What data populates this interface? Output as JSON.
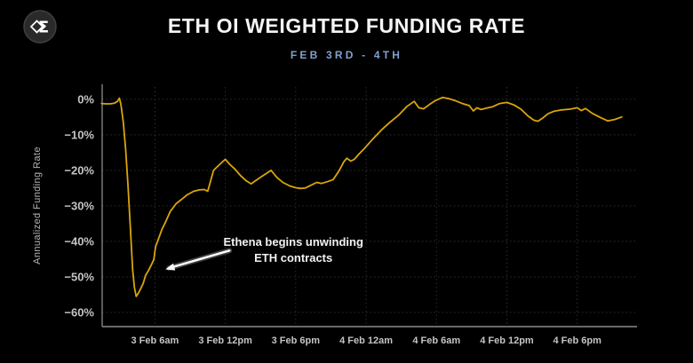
{
  "logo": {
    "glyph": "sigma-diamond-icon",
    "circle_color": "#2a2a2a",
    "ring_color": "#404040",
    "glyph_color": "#ffffff",
    "sigma": "Σ"
  },
  "header": {
    "title": "ETH OI WEIGHTED FUNDING RATE",
    "subtitle": "FEB 3RD - 4TH",
    "title_color": "#f5f5f5",
    "subtitle_color": "#83a0cd"
  },
  "chart_data": {
    "type": "line",
    "title": "ETH OI WEIGHTED FUNDING RATE",
    "subtitle": "FEB 3RD - 4TH",
    "xlabel": "",
    "ylabel": "Annualized Funding Rate",
    "background": "#000000",
    "line_color": "#d9a60a",
    "grid": true,
    "grid_color": "#2e2e2e",
    "spine_color": "#8c8c8c",
    "tick_label_color": "#c4c4c4",
    "xlim_hours_from_feb3_midnight": [
      1.5,
      47.1
    ],
    "ylim_percent": [
      -64,
      4.2
    ],
    "yticks": [
      {
        "value": 0,
        "label": "0%"
      },
      {
        "value": -10,
        "label": "−10%"
      },
      {
        "value": -20,
        "label": "−20%"
      },
      {
        "value": -30,
        "label": "−30%"
      },
      {
        "value": -40,
        "label": "−40%"
      },
      {
        "value": -50,
        "label": "−50%"
      },
      {
        "value": -60,
        "label": "−60%"
      }
    ],
    "xticks": [
      {
        "hour": 6,
        "label": "3 Feb 6am"
      },
      {
        "hour": 12,
        "label": "3 Feb 12pm"
      },
      {
        "hour": 18,
        "label": "3 Feb 6pm"
      },
      {
        "hour": 24,
        "label": "4 Feb 12am"
      },
      {
        "hour": 30,
        "label": "4 Feb 6am"
      },
      {
        "hour": 36,
        "label": "4 Feb 12pm"
      },
      {
        "hour": 42,
        "label": "4 Feb 6pm"
      }
    ],
    "series": [
      {
        "name": "ETH OI weighted funding rate (annualized %)",
        "points": [
          [
            1.45,
            -1.2
          ],
          [
            1.8,
            -1.3
          ],
          [
            2.2,
            -1.3
          ],
          [
            2.55,
            -1.1
          ],
          [
            2.8,
            -0.6
          ],
          [
            2.97,
            0.3
          ],
          [
            3.1,
            -1.5
          ],
          [
            3.3,
            -6.5
          ],
          [
            3.5,
            -14
          ],
          [
            3.7,
            -24
          ],
          [
            3.9,
            -36
          ],
          [
            4.1,
            -48
          ],
          [
            4.25,
            -53
          ],
          [
            4.4,
            -55.5
          ],
          [
            4.6,
            -54.5
          ],
          [
            4.8,
            -53.2
          ],
          [
            5.0,
            -51.8
          ],
          [
            5.2,
            -49.6
          ],
          [
            5.45,
            -48.2
          ],
          [
            5.7,
            -46.6
          ],
          [
            5.9,
            -45.2
          ],
          [
            6.05,
            -41.5
          ],
          [
            6.3,
            -39.3
          ],
          [
            6.6,
            -36.6
          ],
          [
            6.9,
            -34.6
          ],
          [
            7.3,
            -31.6
          ],
          [
            7.8,
            -29.4
          ],
          [
            8.3,
            -28.1
          ],
          [
            8.7,
            -27.0
          ],
          [
            9.3,
            -25.9
          ],
          [
            9.8,
            -25.5
          ],
          [
            10.2,
            -25.4
          ],
          [
            10.5,
            -25.9
          ],
          [
            11.0,
            -20.0
          ],
          [
            11.5,
            -18.4
          ],
          [
            12.0,
            -16.9
          ],
          [
            12.4,
            -18.4
          ],
          [
            12.8,
            -19.6
          ],
          [
            13.3,
            -21.5
          ],
          [
            13.8,
            -23.0
          ],
          [
            14.2,
            -23.8
          ],
          [
            14.8,
            -22.4
          ],
          [
            15.4,
            -21.1
          ],
          [
            15.9,
            -20.0
          ],
          [
            16.4,
            -22.0
          ],
          [
            16.9,
            -23.4
          ],
          [
            17.5,
            -24.4
          ],
          [
            18.0,
            -24.9
          ],
          [
            18.4,
            -25.1
          ],
          [
            18.8,
            -25.0
          ],
          [
            19.3,
            -24.2
          ],
          [
            19.8,
            -23.4
          ],
          [
            20.2,
            -23.7
          ],
          [
            20.7,
            -23.2
          ],
          [
            21.2,
            -22.6
          ],
          [
            21.7,
            -20.1
          ],
          [
            22.1,
            -17.6
          ],
          [
            22.35,
            -16.6
          ],
          [
            22.7,
            -17.4
          ],
          [
            23.0,
            -16.9
          ],
          [
            23.4,
            -15.4
          ],
          [
            23.9,
            -13.7
          ],
          [
            24.6,
            -11.1
          ],
          [
            25.3,
            -8.7
          ],
          [
            26.0,
            -6.6
          ],
          [
            26.8,
            -4.4
          ],
          [
            27.5,
            -2.0
          ],
          [
            28.1,
            -0.6
          ],
          [
            28.5,
            -2.4
          ],
          [
            28.9,
            -2.7
          ],
          [
            29.4,
            -1.5
          ],
          [
            29.9,
            -0.4
          ],
          [
            30.5,
            0.5
          ],
          [
            31.0,
            0.2
          ],
          [
            31.6,
            -0.4
          ],
          [
            32.2,
            -1.2
          ],
          [
            32.8,
            -1.8
          ],
          [
            33.15,
            -3.3
          ],
          [
            33.45,
            -2.4
          ],
          [
            33.8,
            -2.9
          ],
          [
            34.3,
            -2.5
          ],
          [
            34.8,
            -2.1
          ],
          [
            35.4,
            -1.2
          ],
          [
            36.0,
            -0.9
          ],
          [
            36.6,
            -1.6
          ],
          [
            37.2,
            -2.8
          ],
          [
            37.8,
            -4.7
          ],
          [
            38.3,
            -5.9
          ],
          [
            38.65,
            -6.2
          ],
          [
            39.1,
            -5.2
          ],
          [
            39.5,
            -4.1
          ],
          [
            40.0,
            -3.4
          ],
          [
            40.7,
            -3.0
          ],
          [
            41.4,
            -2.8
          ],
          [
            42.0,
            -2.4
          ],
          [
            42.35,
            -3.2
          ],
          [
            42.7,
            -2.6
          ],
          [
            43.3,
            -4.0
          ],
          [
            44.0,
            -5.2
          ],
          [
            44.6,
            -6.1
          ],
          [
            45.2,
            -5.7
          ],
          [
            45.8,
            -5.0
          ]
        ]
      }
    ],
    "annotation": {
      "lines": [
        "Ethena begins unwinding",
        "ETH contracts"
      ],
      "text_color": "#f2f2f2",
      "text_center_hour": 17.8,
      "text_center_value": -40.3,
      "arrow_tail": [
        12.35,
        -42.6
      ],
      "arrow_tip": [
        6.9,
        -47.9
      ],
      "arrow_color": "#ffffff"
    },
    "legend": null
  }
}
